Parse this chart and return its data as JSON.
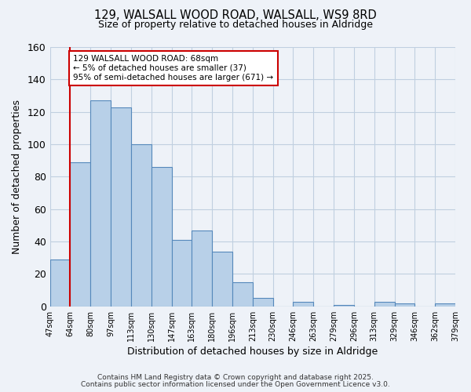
{
  "title1": "129, WALSALL WOOD ROAD, WALSALL, WS9 8RD",
  "title2": "Size of property relative to detached houses in Aldridge",
  "xlabel": "Distribution of detached houses by size in Aldridge",
  "ylabel": "Number of detached properties",
  "bar_values": [
    29,
    89,
    127,
    123,
    100,
    86,
    41,
    47,
    34,
    15,
    5,
    0,
    3,
    0,
    1,
    0,
    3,
    2,
    0,
    2
  ],
  "bin_labels": [
    "47sqm",
    "64sqm",
    "80sqm",
    "97sqm",
    "113sqm",
    "130sqm",
    "147sqm",
    "163sqm",
    "180sqm",
    "196sqm",
    "213sqm",
    "230sqm",
    "246sqm",
    "263sqm",
    "279sqm",
    "296sqm",
    "313sqm",
    "329sqm",
    "346sqm",
    "362sqm",
    "379sqm"
  ],
  "bar_color": "#b8d0e8",
  "bar_edge_color": "#5588bb",
  "grid_color": "#c0cfe0",
  "background_color": "#eef2f8",
  "vline_color": "#cc0000",
  "annotation_text": "129 WALSALL WOOD ROAD: 68sqm\n← 5% of detached houses are smaller (37)\n95% of semi-detached houses are larger (671) →",
  "annotation_box_color": "white",
  "annotation_box_edge_color": "#cc0000",
  "ylim": [
    0,
    160
  ],
  "yticks": [
    0,
    20,
    40,
    60,
    80,
    100,
    120,
    140,
    160
  ],
  "footer1": "Contains HM Land Registry data © Crown copyright and database right 2025.",
  "footer2": "Contains public sector information licensed under the Open Government Licence v3.0."
}
